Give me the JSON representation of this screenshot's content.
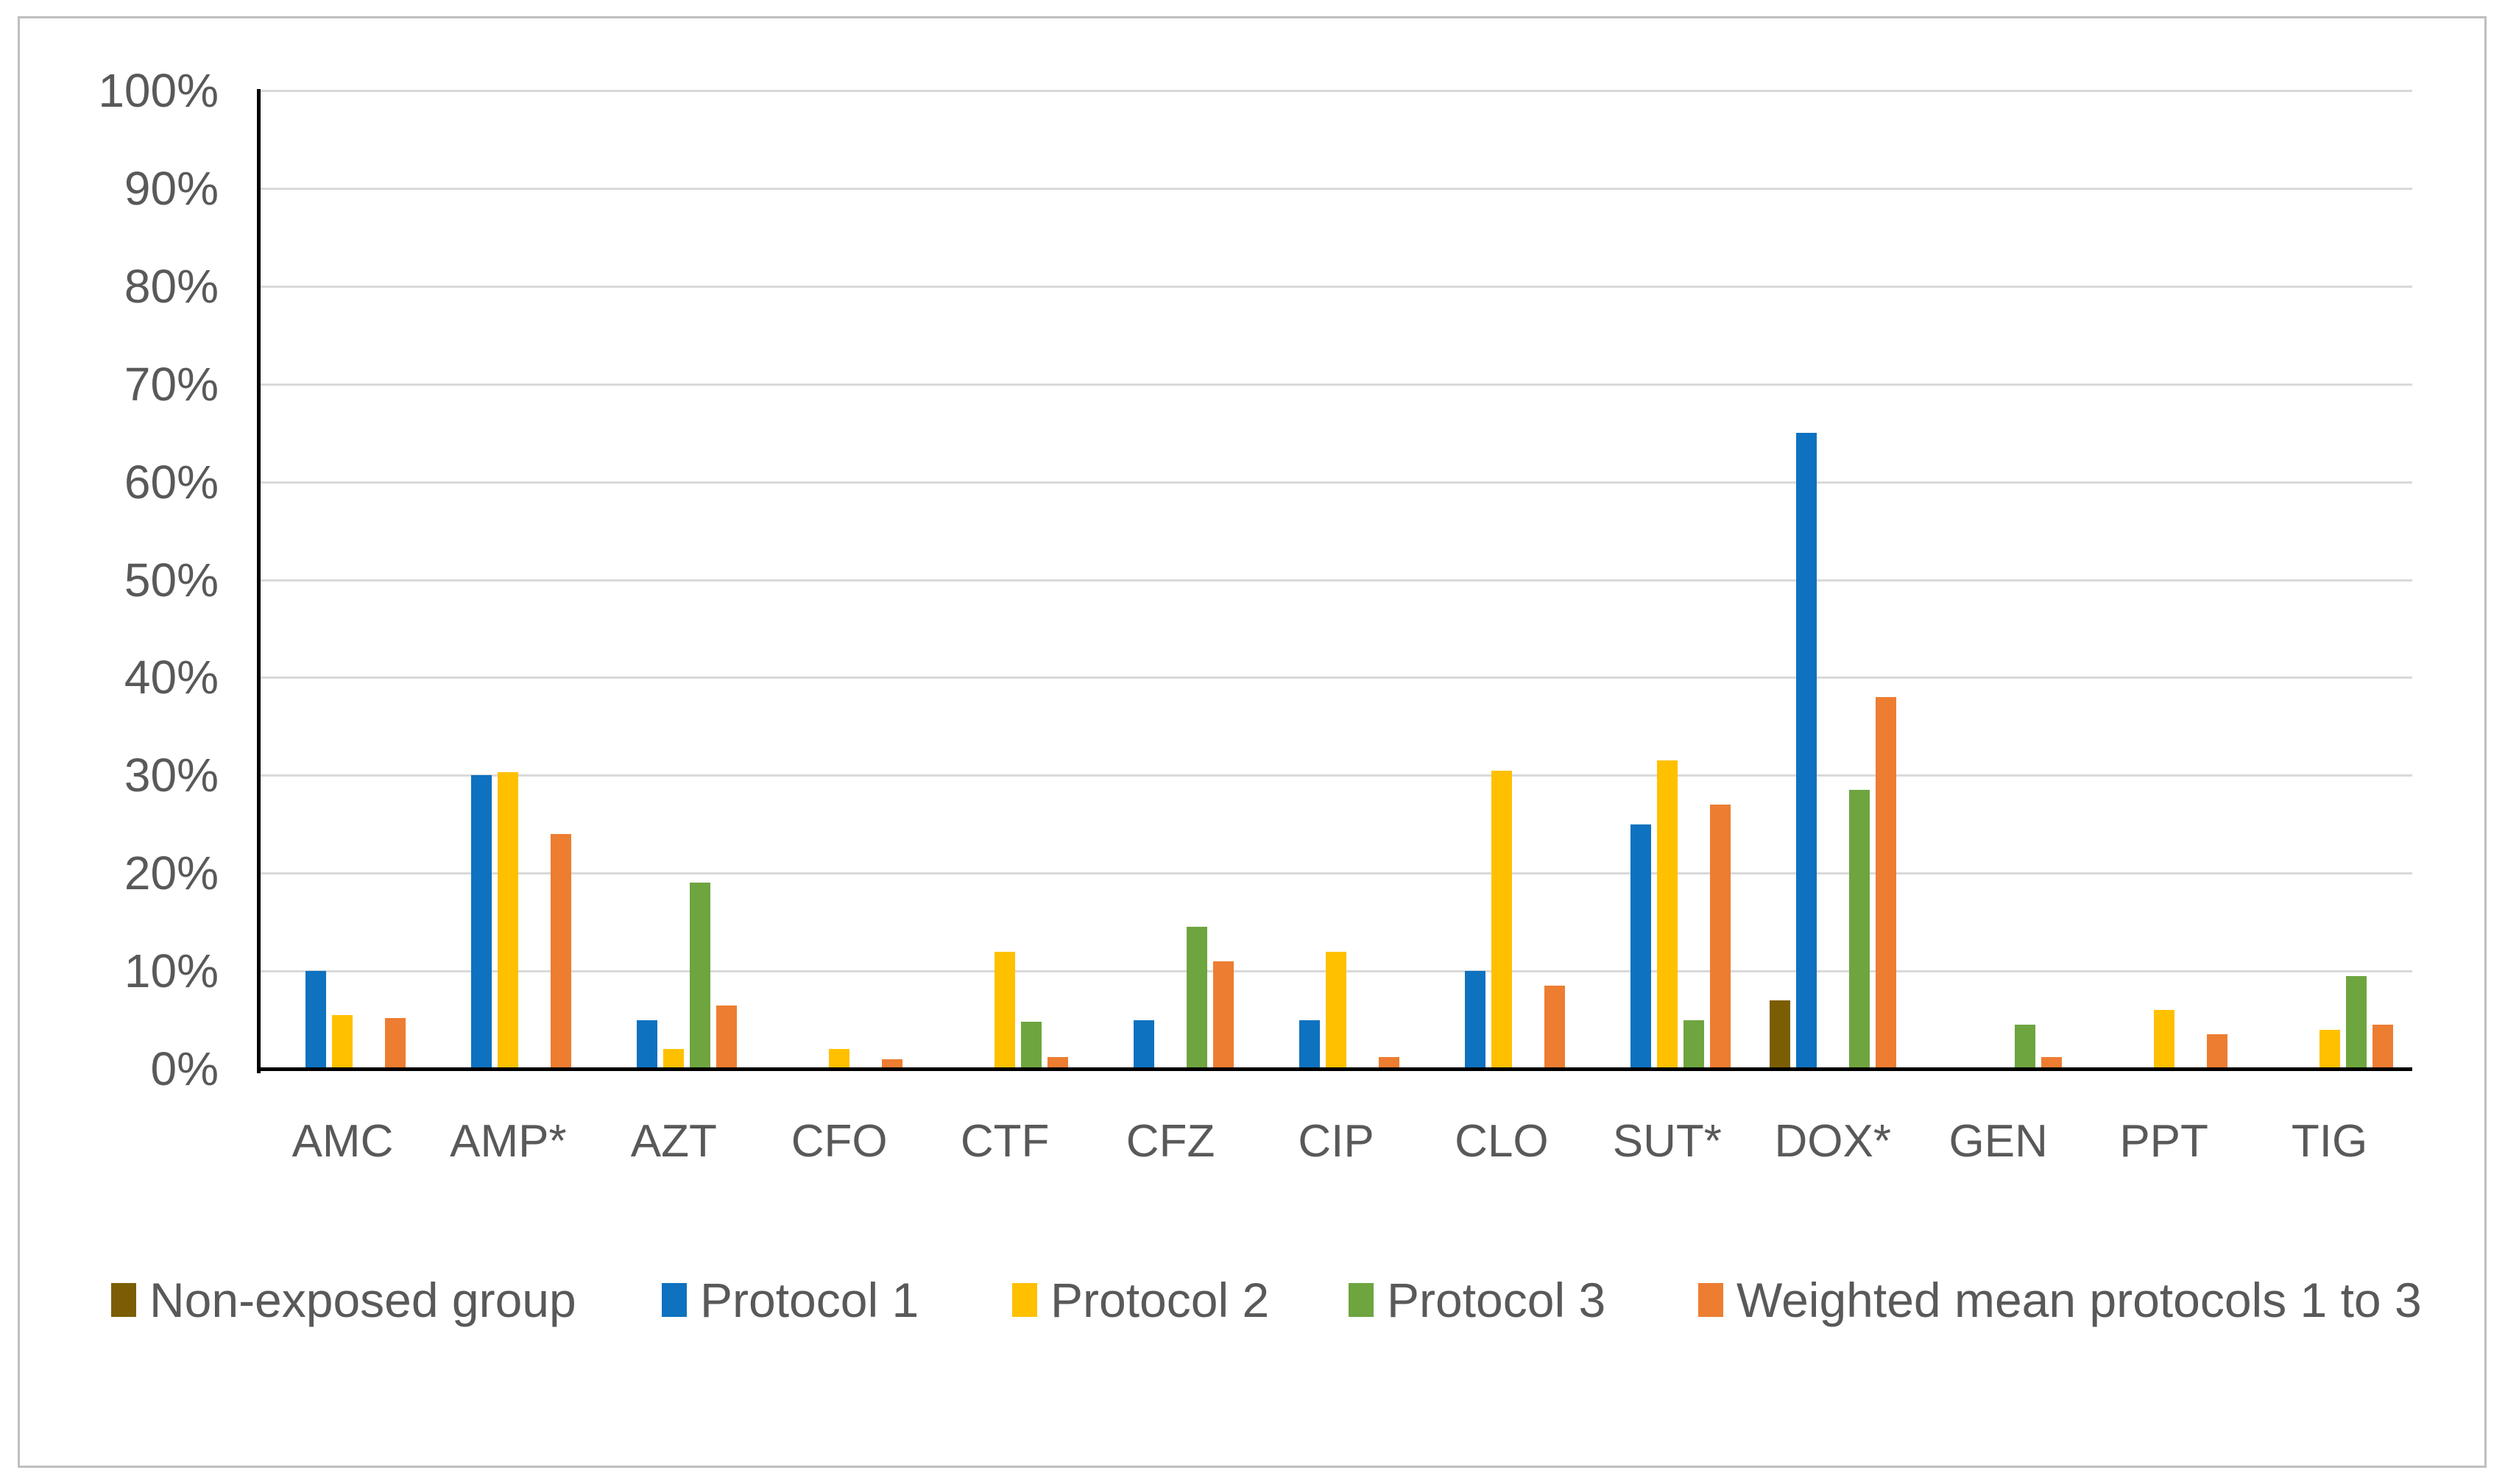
{
  "chart_data": {
    "type": "bar",
    "title": "",
    "xlabel": "",
    "ylabel": "",
    "categories": [
      "AMC",
      "AMP*",
      "AZT",
      "CFO",
      "CTF",
      "CFZ",
      "CIP",
      "CLO",
      "SUT*",
      "DOX*",
      "GEN",
      "PPT",
      "TIG"
    ],
    "series": [
      {
        "name": "Non-exposed group",
        "color": "#7B5E04",
        "values": [
          0,
          0,
          0,
          0,
          0,
          0,
          0,
          0,
          0,
          7,
          0,
          0,
          0
        ]
      },
      {
        "name": "Protocol 1",
        "color": "#0E72C0",
        "values": [
          10,
          30,
          5,
          0,
          0,
          5,
          5,
          10,
          25,
          65,
          0,
          0,
          0
        ]
      },
      {
        "name": "Protocol 2",
        "color": "#FFC000",
        "values": [
          5.5,
          30.3,
          2,
          2,
          12,
          0,
          12,
          30.5,
          31.5,
          0,
          0,
          6,
          4
        ]
      },
      {
        "name": "Protocol 3",
        "color": "#6EA53F",
        "values": [
          0,
          0,
          19,
          0,
          4.8,
          14.5,
          0,
          0,
          5,
          28.5,
          4.5,
          0,
          9.5
        ]
      },
      {
        "name": "Weighted mean protocols 1 to 3",
        "color": "#ED7D31",
        "values": [
          5.2,
          24,
          6.5,
          1,
          1.2,
          11,
          1.2,
          8.5,
          27,
          38,
          1.2,
          3.5,
          4.5
        ]
      }
    ],
    "ylim": [
      0,
      100
    ],
    "ytick_step": 10,
    "ytick_labels": [
      "0%",
      "10%",
      "20%",
      "30%",
      "40%",
      "50%",
      "60%",
      "70%",
      "80%",
      "90%",
      "100%"
    ],
    "grid": true,
    "legend_position": "bottom",
    "colors": {
      "gridline": "#D9D9D9",
      "axis": "#000000",
      "tick_text": "#595959",
      "background": "#FFFFFF",
      "outer_border": "#BFBFBF"
    }
  }
}
